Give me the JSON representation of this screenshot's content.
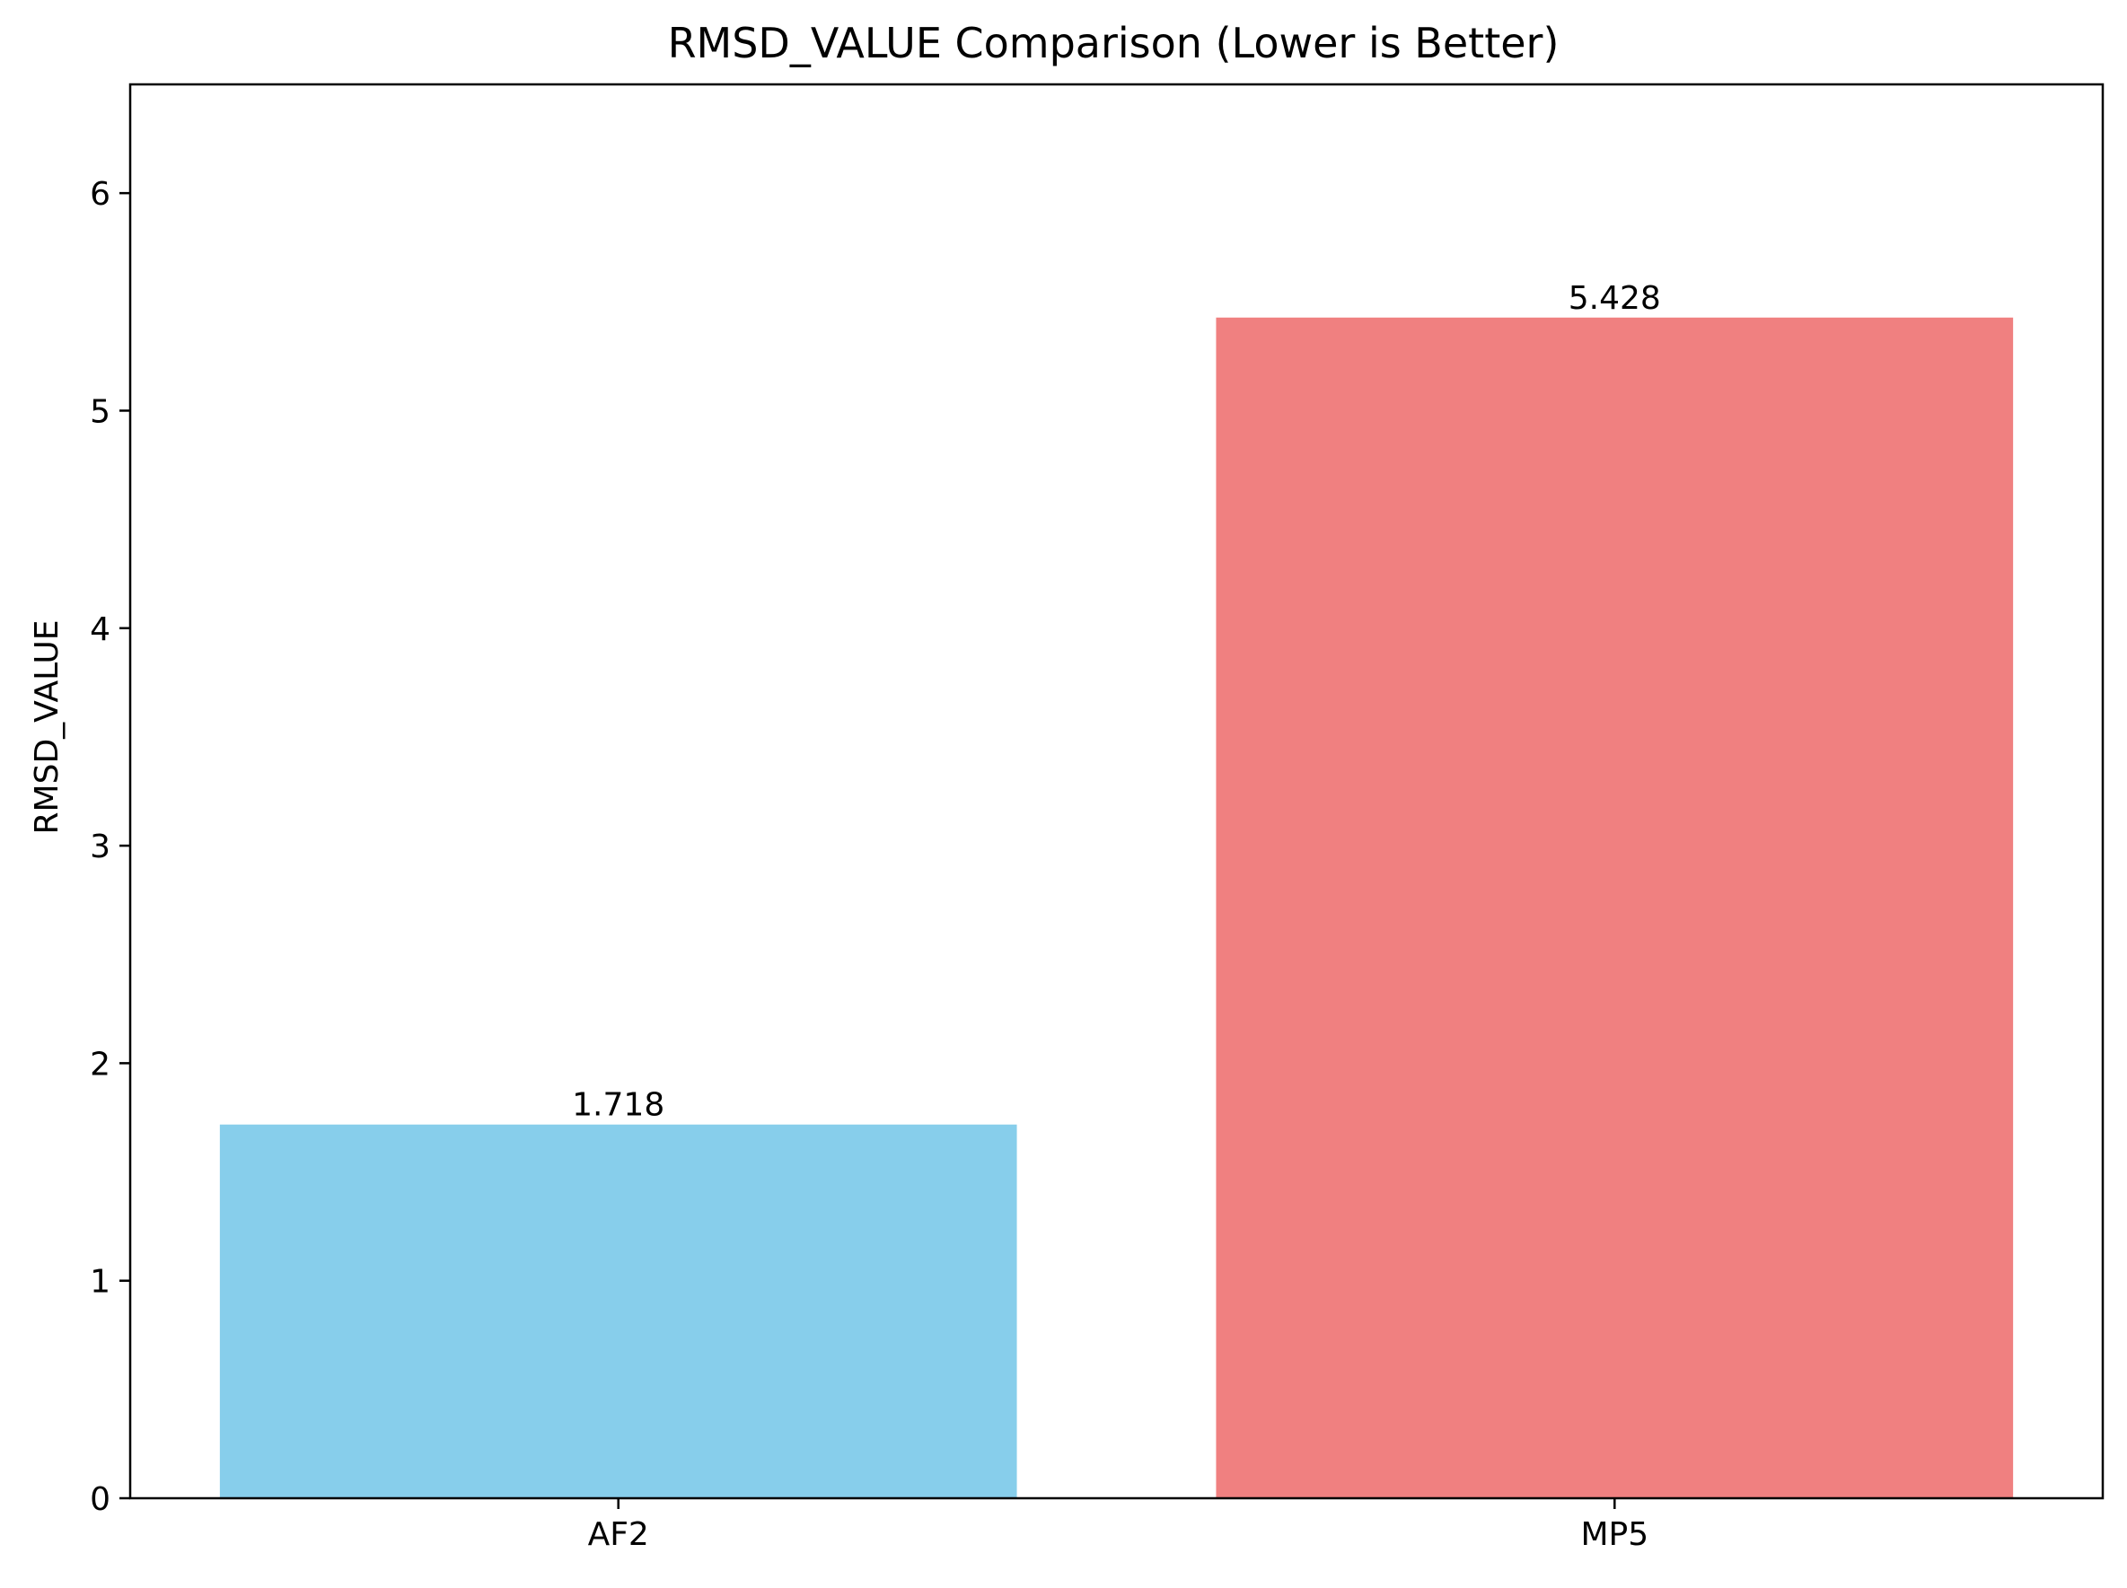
{
  "chart_data": {
    "type": "bar",
    "title": "RMSD_VALUE Comparison (Lower is Better)",
    "xlabel": "",
    "ylabel": "RMSD_VALUE",
    "categories": [
      "AF2",
      "MP5"
    ],
    "values": [
      1.718,
      5.428
    ],
    "value_labels": [
      "1.718",
      "5.428"
    ],
    "colors": [
      "#87ceeb",
      "#f08080"
    ],
    "ylim": [
      0,
      6.5
    ],
    "yticks": [
      0,
      1,
      2,
      3,
      4,
      5,
      6
    ],
    "ytick_labels": [
      "0",
      "1",
      "2",
      "3",
      "4",
      "5",
      "6"
    ],
    "grid": false,
    "legend": "none"
  }
}
